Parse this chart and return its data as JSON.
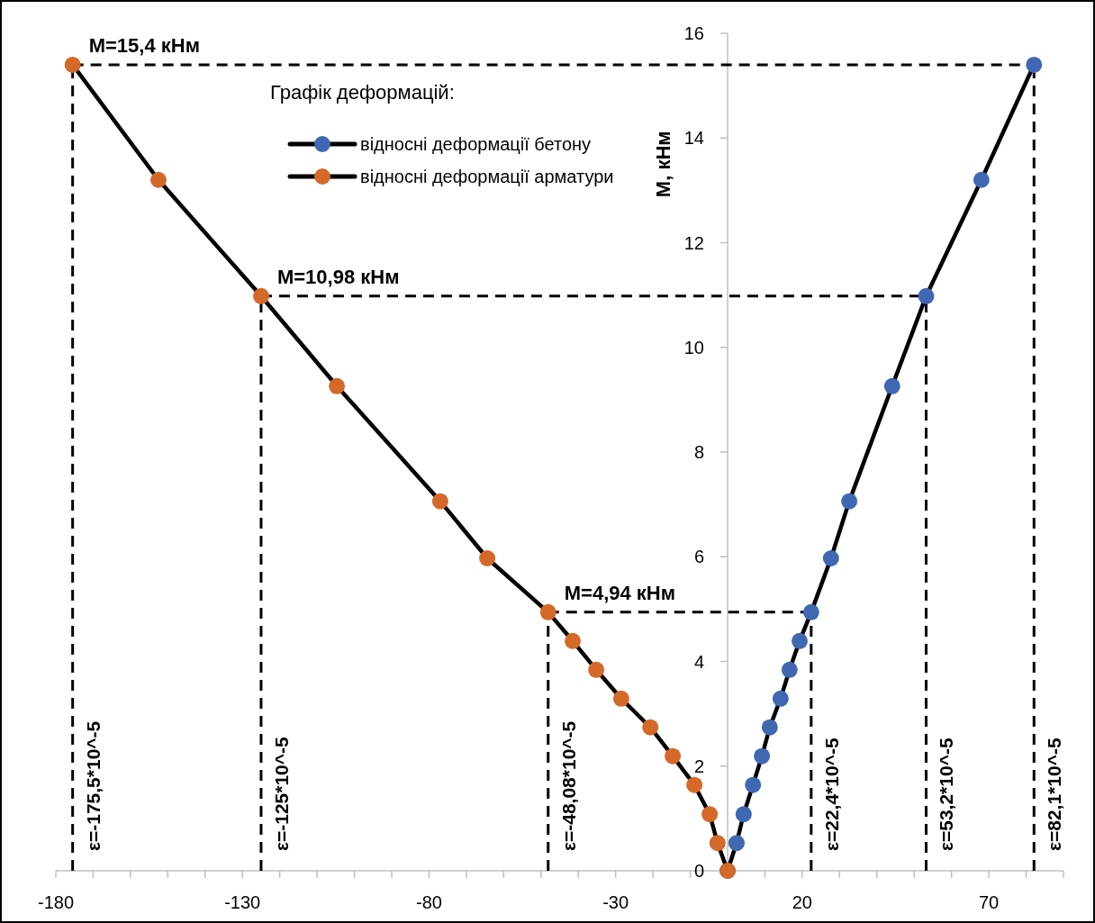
{
  "chart_data": {
    "type": "line",
    "xlabel": null,
    "ylabel": "M, кНм",
    "legend_title": "Графік деформацій:",
    "xlim": [
      -180,
      90
    ],
    "ylim": [
      0,
      16
    ],
    "xticks": [
      -180,
      {
        "value": -170,
        "label": null
      },
      {
        "value": -160,
        "label": null
      },
      {
        "value": -150,
        "label": null
      },
      {
        "value": -140,
        "label": null
      },
      -130,
      {
        "value": -120,
        "label": null
      },
      {
        "value": -110,
        "label": null
      },
      {
        "value": -100,
        "label": null
      },
      {
        "value": -90,
        "label": null
      },
      -80,
      {
        "value": -70,
        "label": null
      },
      {
        "value": -60,
        "label": null
      },
      {
        "value": -50,
        "label": null
      },
      {
        "value": -40,
        "label": null
      },
      -30,
      {
        "value": -20,
        "label": null
      },
      {
        "value": -10,
        "label": null
      },
      {
        "value": 0,
        "label": null
      },
      {
        "value": 10,
        "label": null
      },
      20,
      {
        "value": 30,
        "label": null
      },
      {
        "value": 40,
        "label": null
      },
      {
        "value": 50,
        "label": null
      },
      {
        "value": 60,
        "label": null
      },
      70,
      {
        "value": 80,
        "label": null
      },
      {
        "value": 90,
        "label": null
      }
    ],
    "yticks": [
      0,
      2,
      4,
      6,
      8,
      10,
      12,
      14,
      16
    ],
    "series": [
      {
        "name": "відносні деформації бетону",
        "color": "#4068b2",
        "x": [
          0,
          2.4,
          4.3,
          6.8,
          9.2,
          11.3,
          14.2,
          16.6,
          19.3,
          22.4,
          27.7,
          32.6,
          44.1,
          53.2,
          68.0,
          82.1
        ],
        "values": [
          0,
          0.53,
          1.08,
          1.64,
          2.19,
          2.74,
          3.29,
          3.84,
          4.39,
          4.94,
          5.97,
          7.06,
          9.26,
          10.98,
          13.2,
          15.4
        ]
      },
      {
        "name": "відносні деформації арматури",
        "color": "#d4692a",
        "x": [
          -175.5,
          -152.5,
          -125,
          -104.7,
          -77,
          -64.4,
          -48.08,
          -41.5,
          -35.2,
          -28.5,
          -20.7,
          -14.7,
          -8.9,
          -4.8,
          -2.7,
          0
        ],
        "values": [
          15.4,
          13.2,
          10.98,
          9.26,
          7.06,
          5.97,
          4.94,
          4.39,
          3.84,
          3.29,
          2.74,
          2.19,
          1.64,
          1.08,
          0.53,
          0
        ]
      }
    ],
    "marker": "circle",
    "line_style": "solid",
    "legend": "top center",
    "grid": false,
    "ref_lines": [
      {
        "axis": "y",
        "value": 15.4,
        "label": "M=15,4 кНм",
        "line_style": "dashed"
      },
      {
        "axis": "y",
        "value": 10.98,
        "label": "M=10,98 кНм",
        "line_style": "dashed"
      },
      {
        "axis": "y",
        "value": 4.94,
        "label": "M=4,94 кНм",
        "line_style": "dashed"
      },
      {
        "axis": "x",
        "value": -175.5,
        "label": "ε=-175,5*10^-5",
        "line_style": "dashed"
      },
      {
        "axis": "x",
        "value": -125,
        "label": "ε=-125*10^-5",
        "line_style": "dashed"
      },
      {
        "axis": "x",
        "value": -48.08,
        "label": "ε=-48,08*10^-5",
        "line_style": "dashed"
      },
      {
        "axis": "x",
        "value": 22.4,
        "label": "ε=22,4*10^-5",
        "line_style": "dashed"
      },
      {
        "axis": "x",
        "value": 53.2,
        "label": "ε=53,2*10^-5",
        "line_style": "dashed"
      },
      {
        "axis": "x",
        "value": 82.1,
        "label": "ε=82,1*10^-5",
        "line_style": "dashed"
      }
    ]
  }
}
